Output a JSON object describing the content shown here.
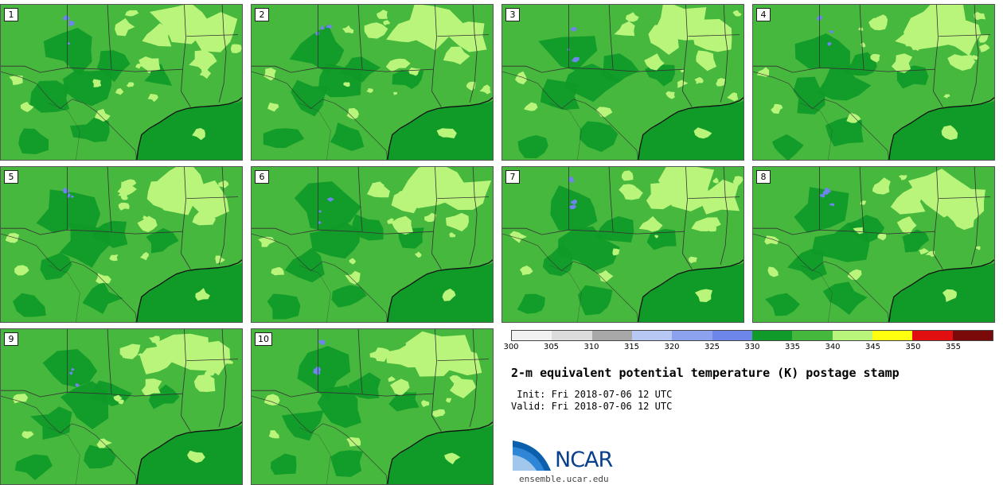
{
  "title": "2-m equivalent potential temperature (K) postage stamp",
  "init": " Init: Fri 2018-07-06 12 UTC",
  "valid": "Valid: Fri 2018-07-06 12 UTC",
  "logo_text": "NCAR",
  "url": "ensemble.ucar.edu",
  "members": [
    "1",
    "2",
    "3",
    "4",
    "5",
    "6",
    "7",
    "8",
    "9",
    "10"
  ],
  "colorbar": {
    "ticks": [
      "300",
      "305",
      "310",
      "315",
      "320",
      "325",
      "330",
      "335",
      "340",
      "345",
      "350",
      "355"
    ],
    "colors": [
      "#f2f2f2",
      "#dcdcdc",
      "#a8a8a8",
      "#b7c8f5",
      "#8da2ef",
      "#6c86ea",
      "#0f9a29",
      "#44b83c",
      "#b8f57a",
      "#ffff10",
      "#e10f0f",
      "#7a0a0a"
    ]
  },
  "map_colors": {
    "base": "#46b83d",
    "dark": "#109a28",
    "light": "#b9f57b",
    "blue": "#6d85ec",
    "coast": "#111111",
    "border": "#333333"
  }
}
